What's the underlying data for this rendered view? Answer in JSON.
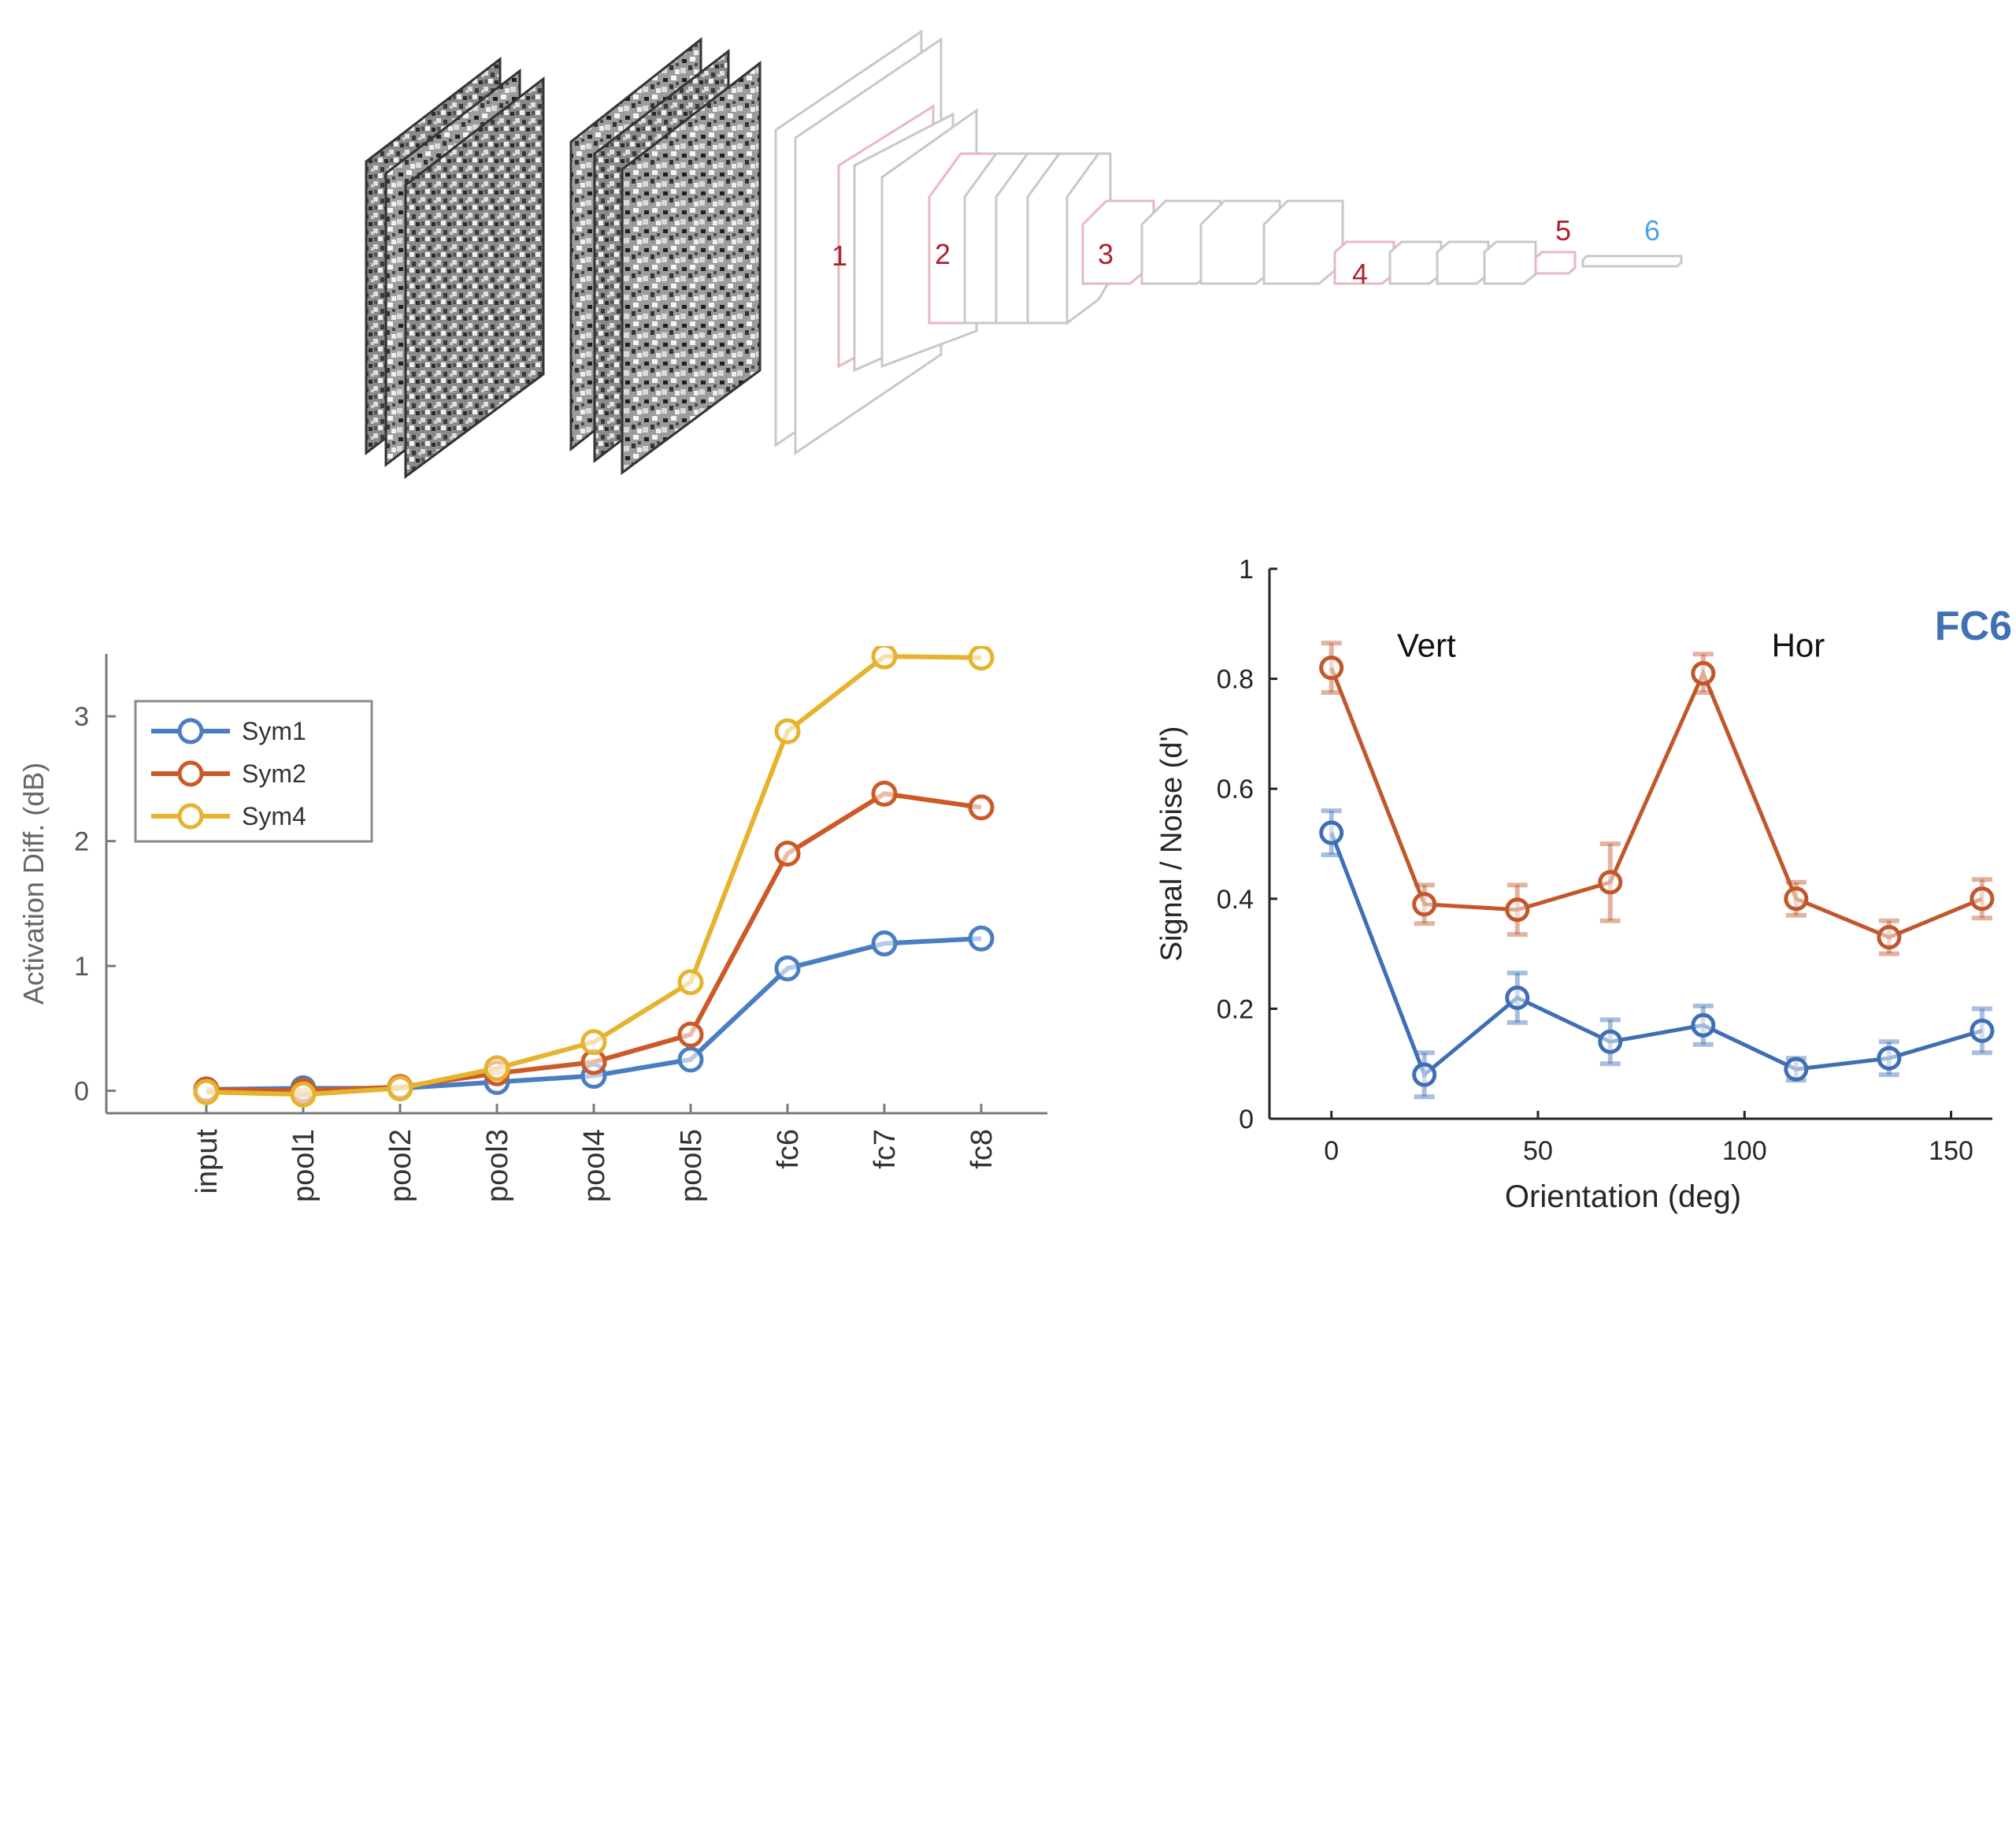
{
  "diagram": {
    "layer_labels": [
      "1",
      "2",
      "3",
      "4",
      "5",
      "6"
    ],
    "colors": {
      "conv_label": "#b0202a",
      "fc_label": "#4aa3e8",
      "box_outline": "#c8c8c8",
      "accent_outline": "#e8b8bc"
    }
  },
  "chart_data": [
    {
      "type": "line",
      "title": "",
      "xlabel": "",
      "ylabel": "Activation Diff. (dB)",
      "categories": [
        "input",
        "pool1",
        "pool2",
        "pool3",
        "pool4",
        "pool5",
        "fc6",
        "fc7",
        "fc8"
      ],
      "ylim": [
        -0.18,
        3.5
      ],
      "yticks": [
        0,
        1,
        2,
        3
      ],
      "legend": "top-left",
      "grid": false,
      "series": [
        {
          "name": "Sym1",
          "color": "#4a7ec2",
          "values": [
            0.01,
            0.02,
            0.02,
            0.07,
            0.12,
            0.25,
            0.98,
            1.18,
            1.22
          ]
        },
        {
          "name": "Sym2",
          "color": "#cc5a28",
          "values": [
            0.01,
            0.0,
            0.03,
            0.14,
            0.23,
            0.45,
            1.9,
            2.38,
            2.27
          ]
        },
        {
          "name": "Sym4",
          "color": "#e6b32e",
          "values": [
            -0.01,
            -0.03,
            0.02,
            0.18,
            0.39,
            0.87,
            2.88,
            3.48,
            3.47
          ]
        }
      ]
    },
    {
      "type": "line",
      "title": "FC6",
      "xlabel": "Orientation (deg)",
      "ylabel": "Signal / Noise (d')",
      "xlim": [
        -15,
        160
      ],
      "ylim": [
        0,
        1
      ],
      "xticks": [
        0,
        50,
        100,
        150
      ],
      "yticks": [
        0,
        0.2,
        0.4,
        0.6,
        0.8,
        1
      ],
      "ytick_labels": [
        "0",
        "0.2",
        "0.4",
        "0.6",
        "0.8",
        "1"
      ],
      "grid": false,
      "x": [
        0,
        22.5,
        45,
        67.5,
        90,
        112.5,
        135,
        157.5
      ],
      "annotations": [
        {
          "text": "Vert",
          "x": 23,
          "y": 0.84
        },
        {
          "text": "Hor",
          "x": 113,
          "y": 0.84
        }
      ],
      "series": [
        {
          "color": "#c1572b",
          "values": [
            0.82,
            0.39,
            0.38,
            0.43,
            0.81,
            0.4,
            0.33,
            0.4
          ],
          "errors": [
            0.045,
            0.035,
            0.045,
            0.07,
            0.035,
            0.03,
            0.03,
            0.035
          ]
        },
        {
          "color": "#3e6fb4",
          "values": [
            0.52,
            0.08,
            0.22,
            0.14,
            0.17,
            0.09,
            0.11,
            0.16
          ],
          "errors": [
            0.04,
            0.04,
            0.045,
            0.04,
            0.035,
            0.02,
            0.03,
            0.04
          ]
        }
      ]
    }
  ]
}
